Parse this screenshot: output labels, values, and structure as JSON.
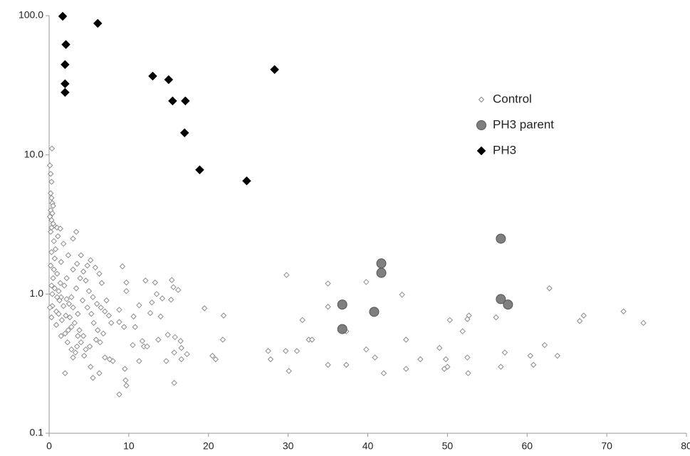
{
  "chart_data": {
    "type": "scatter",
    "xlim": [
      0,
      80
    ],
    "xticks": [
      0,
      10,
      20,
      30,
      40,
      50,
      60,
      70,
      80
    ],
    "ylim": [
      0.1,
      100
    ],
    "log_y": true,
    "yticks": [
      {
        "value": 0.1,
        "label": "0.1"
      },
      {
        "value": 1,
        "label": "1.0"
      },
      {
        "value": 10,
        "label": "10.0"
      },
      {
        "value": 100,
        "label": "100.0"
      }
    ],
    "grid": false,
    "legend": "upper-right",
    "series": [
      {
        "name": "Control",
        "color": "#8c8c8c",
        "marker": "diamond-open",
        "x": [
          29.8,
          35,
          39.8,
          44.3,
          35,
          31.8,
          32.6,
          33,
          27.5,
          27.8,
          29.7,
          31.1,
          30.1,
          35,
          37.3,
          37.3,
          39.8,
          40.9,
          42,
          44.8,
          44.8,
          46.6,
          49,
          49.6,
          50,
          49.8,
          50.3,
          51.9,
          52.5,
          52.7,
          52.5,
          52.6,
          56.1,
          56.7,
          57.2,
          60.4,
          60.8,
          62.2,
          62.8,
          63.8,
          66.6,
          67.1,
          72.1,
          74.6,
          9.2,
          9.7,
          9.7,
          12.1,
          13.3,
          15.4,
          15.6,
          16.2,
          13.5,
          14.2,
          15.3,
          12.9,
          12.7,
          14,
          11.3,
          10.6,
          10.8,
          10.5,
          11.7,
          11.9,
          12.3,
          13.7,
          14.9,
          15.8,
          16.5,
          16.6,
          15.7,
          17.3,
          16.6,
          14.7,
          15.7,
          11.3,
          9.5,
          9.6,
          8.8,
          9.7,
          8,
          7.6,
          7,
          19.5,
          21.9,
          21.8,
          20.5,
          20.9,
          8.8,
          8.8,
          9.4,
          0.35,
          0.1,
          0.2,
          0.3,
          0.2,
          0.3,
          0.4,
          0.5,
          0.2,
          0.4,
          0.3,
          0.6,
          1,
          1.4,
          3.4,
          3,
          0.3,
          0.7,
          0.2,
          0.6,
          1,
          0.5,
          0.3,
          0.7,
          1.2,
          1.9,
          1.5,
          2.2,
          0.4,
          0.9,
          0.3,
          1.3,
          1.8,
          2.5,
          3,
          2.8,
          3.4,
          3.9,
          4.3,
          4.8,
          5.2,
          5.8,
          6.3,
          6.6,
          3,
          3.5,
          2.4,
          1.8,
          4,
          4.6,
          5,
          5.5,
          6,
          6.5,
          7,
          7.5,
          7.8,
          7.2,
          4.2,
          4.8,
          5.3,
          5.6,
          6.1,
          6.8,
          3.6,
          3.2,
          2.8,
          2.4,
          2,
          2.6,
          3.8,
          4.3,
          4,
          3.5,
          4.6,
          5.1,
          5.9,
          6.4,
          1.6,
          1.2,
          2.1,
          1,
          0.1,
          0.9,
          1.5,
          2.3,
          2.8,
          3.3,
          4.4,
          2,
          3,
          5.2,
          5.5,
          6.3,
          3.6,
          2.2,
          1.5,
          0.8,
          0.2,
          0.5,
          0.1,
          0.3,
          1.1,
          0.6,
          1.4,
          0.4
        ],
        "values": [
          1.37,
          1.19,
          1.22,
          0.99,
          0.81,
          0.65,
          0.47,
          0.47,
          0.39,
          0.34,
          0.39,
          0.39,
          0.28,
          0.31,
          0.54,
          0.31,
          0.4,
          0.35,
          0.27,
          0.47,
          0.29,
          0.34,
          0.41,
          0.29,
          0.3,
          0.34,
          0.65,
          0.54,
          0.66,
          0.7,
          0.35,
          0.27,
          0.68,
          0.3,
          0.38,
          0.36,
          0.31,
          0.43,
          1.1,
          0.36,
          0.64,
          0.7,
          0.75,
          0.62,
          1.58,
          1.21,
          1.05,
          1.25,
          1.21,
          1.26,
          1.12,
          1.07,
          1,
          0.93,
          0.91,
          0.87,
          0.73,
          0.69,
          0.83,
          0.69,
          0.58,
          0.43,
          0.46,
          0.42,
          0.42,
          0.47,
          0.51,
          0.49,
          0.46,
          0.41,
          0.38,
          0.37,
          0.34,
          0.33,
          0.23,
          0.33,
          0.29,
          0.24,
          0.19,
          0.22,
          0.33,
          0.34,
          0.35,
          0.79,
          0.7,
          0.47,
          0.36,
          0.34,
          0.77,
          0.63,
          0.58,
          11.1,
          8.4,
          7.3,
          6.4,
          5.3,
          4.9,
          4.5,
          4.3,
          4,
          3.8,
          3.4,
          3.1,
          3,
          2.95,
          2.8,
          2.5,
          2,
          1.8,
          1.6,
          1.5,
          1.4,
          1.3,
          1.15,
          1.1,
          1.05,
          1.15,
          0.95,
          0.92,
          0.82,
          0.75,
          0.68,
          0.9,
          0.82,
          0.85,
          0.8,
          0.95,
          1.1,
          1.3,
          1.45,
          1.6,
          1.75,
          1.55,
          1.4,
          1.2,
          1.5,
          1.65,
          1.9,
          2.3,
          1.9,
          1.25,
          1.05,
          0.95,
          0.85,
          0.8,
          0.75,
          0.7,
          0.62,
          0.9,
          0.9,
          0.8,
          0.72,
          0.62,
          0.55,
          0.52,
          0.72,
          0.62,
          0.58,
          0.55,
          0.52,
          0.68,
          0.55,
          0.5,
          0.45,
          0.42,
          0.4,
          0.42,
          0.47,
          0.45,
          0.65,
          0.72,
          0.7,
          0.95,
          0.8,
          0.6,
          0.5,
          0.45,
          0.4,
          0.38,
          0.36,
          0.27,
          0.35,
          0.3,
          0.25,
          0.27,
          0.5,
          1.3,
          1.7,
          2.1,
          2.8,
          3.2,
          3.6,
          3,
          2.6,
          2.4,
          1.2,
          1
        ]
      },
      {
        "name": "PH3 parent",
        "color": "#7f7f7f",
        "marker": "circle",
        "x": [
          56.7,
          41.7,
          41.7,
          36.8,
          40.8,
          36.8,
          56.7,
          57.6
        ],
        "values": [
          2.5,
          1.66,
          1.42,
          0.84,
          0.745,
          0.56,
          0.92,
          0.84
        ]
      },
      {
        "name": "PH3",
        "color": "#000000",
        "marker": "diamond",
        "x": [
          1.7,
          6.1,
          2.1,
          2.0,
          2.0,
          2.0,
          13.0,
          15.0,
          15.5,
          17.1,
          17.0,
          18.9,
          24.8,
          28.3
        ],
        "values": [
          99,
          88,
          62,
          44.5,
          32.4,
          28.1,
          36.8,
          34.7,
          24.4,
          24.4,
          14.4,
          7.8,
          6.5,
          41
        ]
      }
    ]
  }
}
